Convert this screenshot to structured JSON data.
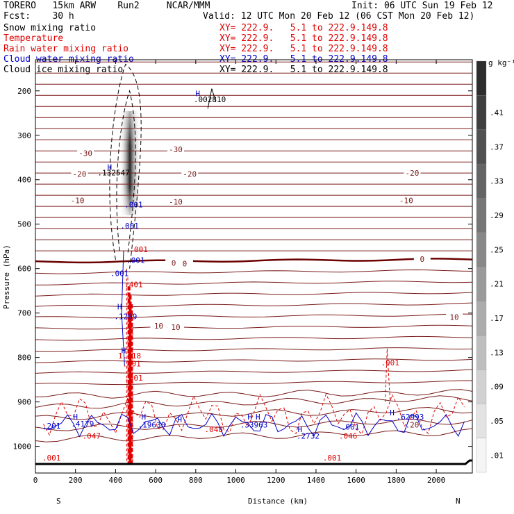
{
  "header": {
    "model": "TORERO   15km ARW    Run2     NCAR/MMM",
    "init": "Init: 06 UTC Sun 19 Feb 12",
    "fcst": "Fcst:    30 h",
    "valid": "Valid: 12 UTC Mon 20 Feb 12 (06 CST Mon 20 Feb 12)"
  },
  "legend": [
    {
      "label": "Snow mixing ratio",
      "xy": "XY= 222.9.   5.1 to 222.9.149.8",
      "color": "#000000"
    },
    {
      "label": "Temperature",
      "xy": "XY= 222.9.   5.1 to 222.9.149.8",
      "color": "#e00000"
    },
    {
      "label": "Rain water mixing ratio",
      "xy": "XY= 222.9.   5.1 to 222.9.149.8",
      "color": "#e00000"
    },
    {
      "label": "Cloud water mixing ratio",
      "xy": "XY= 222.9.   5.1 to 222.9.149.8",
      "color": "#0000c8"
    },
    {
      "label": "Cloud ice mixing ratio",
      "xy": "XY= 222.9.   5.1 to 222.9.149.8",
      "color": "#000000"
    }
  ],
  "chart_data": {
    "type": "contour-cross-section",
    "xlabel": "Distance (km)",
    "ylabel": "Pressure (hPa)",
    "xlim": [
      0,
      2180
    ],
    "ylim": [
      1060,
      130
    ],
    "x_ticks": [
      0,
      200,
      400,
      600,
      800,
      1000,
      1200,
      1400,
      1600,
      1800,
      2000
    ],
    "y_ticks": [
      200,
      300,
      400,
      500,
      600,
      700,
      800,
      900,
      1000
    ],
    "left_end": "S",
    "right_end": "N",
    "colorbar": {
      "unit": "g kg⁻¹",
      "ticks": [
        ".01",
        ".05",
        ".09",
        ".13",
        ".17",
        ".21",
        ".25",
        ".29",
        ".33",
        ".37",
        ".41"
      ]
    },
    "temperature_labels": [
      {
        "text": "-30",
        "x": 250,
        "p": 343
      },
      {
        "text": "-30",
        "x": 700,
        "p": 335
      },
      {
        "text": "-20",
        "x": 220,
        "p": 390
      },
      {
        "text": "-20",
        "x": 770,
        "p": 390
      },
      {
        "text": "-20",
        "x": 1880,
        "p": 388
      },
      {
        "text": "-10",
        "x": 210,
        "p": 450
      },
      {
        "text": "-10",
        "x": 700,
        "p": 453
      },
      {
        "text": "-10",
        "x": 1850,
        "p": 450
      },
      {
        "text": "0",
        "x": 690,
        "p": 590
      },
      {
        "text": "0",
        "x": 745,
        "p": 592
      },
      {
        "text": "0",
        "x": 1930,
        "p": 582
      },
      {
        "text": "10",
        "x": 615,
        "p": 732
      },
      {
        "text": "10",
        "x": 700,
        "p": 735
      },
      {
        "text": "10",
        "x": 2090,
        "p": 712
      }
    ],
    "maxima_labels": [
      {
        "text": ".002810",
        "x": 870,
        "p": 225,
        "field": "cloud ice"
      },
      {
        "text": ".132547",
        "x": 390,
        "p": 390,
        "field": "snow"
      },
      {
        "text": ".001",
        "x": 490,
        "p": 462,
        "field": "cloud water"
      },
      {
        "text": ".001",
        "x": 470,
        "p": 510,
        "field": "cloud water"
      },
      {
        "text": ".001",
        "x": 515,
        "p": 563,
        "field": "rain"
      },
      {
        "text": ".001",
        "x": 500,
        "p": 587,
        "field": "cloud water"
      },
      {
        "text": ".001",
        "x": 420,
        "p": 617,
        "field": "cloud water"
      },
      {
        "text": ".401",
        "x": 490,
        "p": 642,
        "field": "rain"
      },
      {
        "text": ".1209",
        "x": 450,
        "p": 714,
        "field": "cloud water"
      },
      {
        "text": "1.818",
        "x": 470,
        "p": 802,
        "field": "rain"
      },
      {
        "text": ".401",
        "x": 480,
        "p": 820,
        "field": "rain"
      },
      {
        "text": ".801",
        "x": 490,
        "p": 852,
        "field": "rain"
      },
      {
        "text": ".4179",
        "x": 235,
        "p": 955,
        "field": "cloud water"
      },
      {
        "text": ".19630",
        "x": 580,
        "p": 958,
        "field": "cloud water"
      },
      {
        "text": ".33963",
        "x": 1090,
        "p": 958,
        "field": "cloud water"
      },
      {
        "text": ".2732",
        "x": 1360,
        "p": 983,
        "field": "cloud water"
      },
      {
        "text": ".001",
        "x": 1570,
        "p": 962,
        "field": "cloud water"
      },
      {
        "text": ".046",
        "x": 1560,
        "p": 983,
        "field": "rain"
      },
      {
        "text": ".62993",
        "x": 1870,
        "p": 940,
        "field": "cloud water"
      },
      {
        "text": ".001",
        "x": 1770,
        "p": 818,
        "field": "rain"
      },
      {
        "text": ".20",
        "x": 1880,
        "p": 958,
        "field": "temperature"
      },
      {
        "text": ".201",
        "x": 80,
        "p": 960,
        "field": "cloud water"
      },
      {
        "text": ".047",
        "x": 280,
        "p": 983,
        "field": "rain"
      },
      {
        "text": ".048",
        "x": 890,
        "p": 968,
        "field": "rain"
      },
      {
        "text": ".001",
        "x": 80,
        "p": 1032,
        "field": "rain"
      },
      {
        "text": ".001",
        "x": 1480,
        "p": 1032,
        "field": "rain"
      }
    ],
    "h_markers": [
      {
        "x": 810,
        "p": 212
      },
      {
        "x": 370,
        "p": 378
      },
      {
        "x": 420,
        "p": 692
      },
      {
        "x": 440,
        "p": 790
      },
      {
        "x": 200,
        "p": 940
      },
      {
        "x": 540,
        "p": 940
      },
      {
        "x": 1070,
        "p": 940
      },
      {
        "x": 1110,
        "p": 940
      },
      {
        "x": 1320,
        "p": 968
      },
      {
        "x": 1780,
        "p": 930
      },
      {
        "x": 720,
        "p": 945
      }
    ]
  }
}
